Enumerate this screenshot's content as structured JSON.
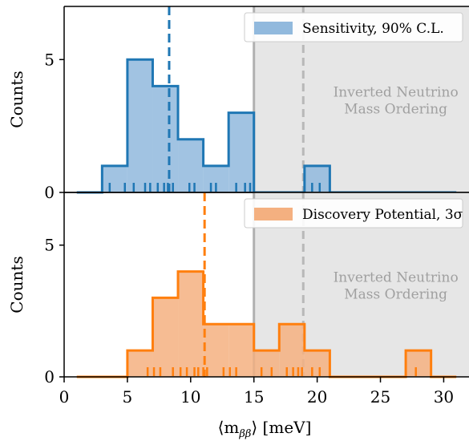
{
  "chart_data": [
    {
      "type": "histogram",
      "panel": "top",
      "ylabel": "Counts",
      "xlim": [
        0,
        32
      ],
      "ylim": [
        0,
        7
      ],
      "yticks": [
        0,
        5
      ],
      "bins": [
        1,
        3,
        5,
        7,
        9,
        11,
        13,
        15,
        17,
        19,
        21,
        23,
        25,
        27,
        29,
        31
      ],
      "counts": [
        0,
        1,
        5,
        4,
        2,
        1,
        3,
        0,
        0,
        1,
        0,
        0,
        0,
        0,
        0
      ],
      "median": 8.3,
      "rug": [
        3.6,
        4.8,
        5.5,
        6.4,
        6.8,
        7.4,
        7.9,
        8.2,
        8.6,
        9.9,
        10.3,
        11.6,
        12.0,
        13.6,
        14.3,
        14.7,
        19.6,
        20.2
      ],
      "legend": "Sensitivity, 90% C.L.",
      "legend_position": "top-right",
      "color": "#1f77b4",
      "fill": "#91b9dd"
    },
    {
      "type": "histogram",
      "panel": "bottom",
      "ylabel": "Counts",
      "xlabel": "⟨m_ββ⟩ [meV]",
      "xlim": [
        0,
        32
      ],
      "ylim": [
        0,
        7
      ],
      "yticks": [
        0,
        5
      ],
      "xticks": [
        0,
        5,
        10,
        15,
        20,
        25,
        30
      ],
      "bins": [
        1,
        3,
        5,
        7,
        9,
        11,
        13,
        15,
        17,
        19,
        21,
        23,
        25,
        27,
        29,
        31
      ],
      "counts": [
        0,
        0,
        1,
        3,
        4,
        2,
        2,
        1,
        2,
        1,
        0,
        0,
        0,
        1,
        0
      ],
      "median": 11.1,
      "rug": [
        6.6,
        7.1,
        7.6,
        8.6,
        9.2,
        9.7,
        10.3,
        10.6,
        11.0,
        11.3,
        12.6,
        13.1,
        13.6,
        15.6,
        16.4,
        17.6,
        18.1,
        18.5,
        18.8,
        19.6,
        20.2,
        27.8
      ],
      "legend": "Discovery Potential, 3σ",
      "legend_position": "top-right",
      "color": "#ff7f0e",
      "fill": "#f4b080"
    }
  ],
  "region": {
    "x_start": 15,
    "x_ref": 18.9,
    "label_line1": "Inverted Neutrino",
    "label_line2": "Mass Ordering"
  },
  "axis": {
    "xlabel_main": "⟨m",
    "xlabel_sub": "ββ",
    "xlabel_tail": "⟩ [meV]"
  }
}
